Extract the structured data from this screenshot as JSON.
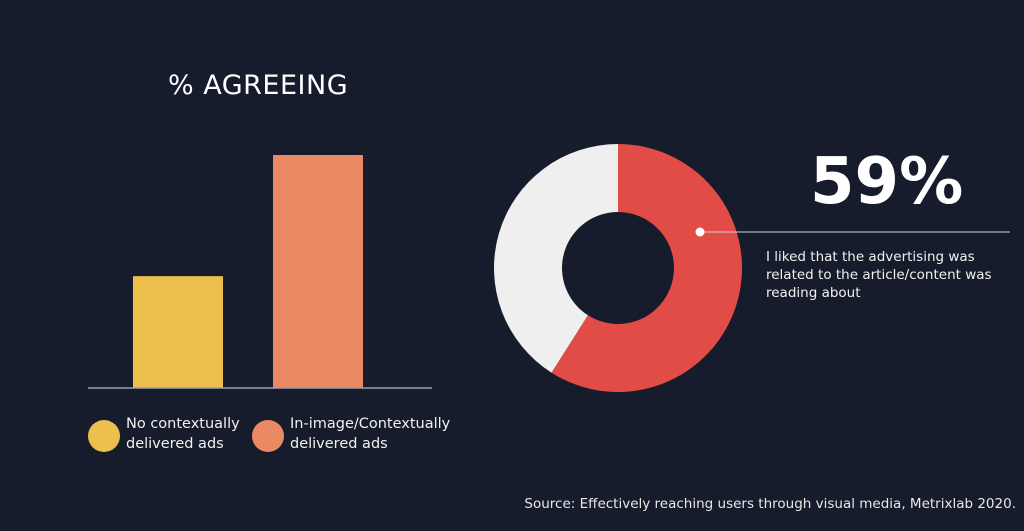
{
  "chart_data": [
    {
      "type": "bar",
      "title": "% AGREEING",
      "categories": [
        "No contextually delivered ads",
        "In-image/Contextually delivered ads"
      ],
      "values": [
        48,
        100
      ],
      "ylim": [
        0,
        100
      ],
      "legend": [
        {
          "label": "No contextually delivered ads",
          "color": "#edc04d"
        },
        {
          "label": "In-image/Contextually delivered ads",
          "color": "#ea8a64"
        }
      ],
      "legend_position": "bottom",
      "grid": false
    },
    {
      "type": "pie",
      "style": "donut",
      "slices": [
        {
          "value": 59,
          "color": "#e14c46"
        },
        {
          "value": 41,
          "color": "#efefef"
        }
      ],
      "annotation": {
        "value_label": "59%",
        "text": "I liked that the advertising was related to the article/content was reading about"
      }
    }
  ],
  "source": "Source: Effectively reaching users through visual media, Metrixlab 2020."
}
